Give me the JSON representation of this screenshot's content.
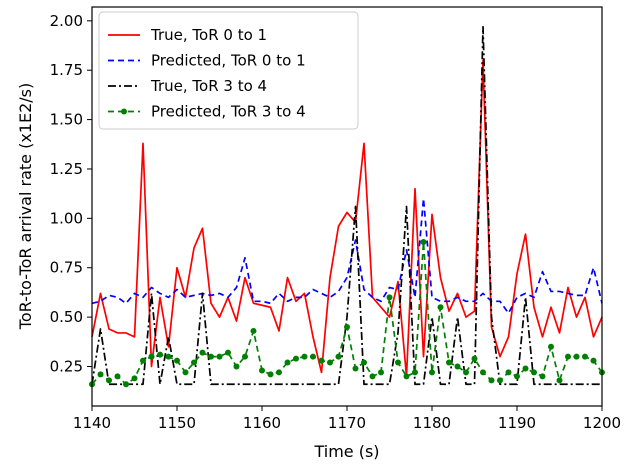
{
  "chart_data": {
    "type": "line",
    "xlabel": "Time (s)",
    "ylabel": "ToR-to-ToR arrival rate (x1E2/s)",
    "xlim": [
      1140,
      1200
    ],
    "ylim": [
      0.05,
      2.07
    ],
    "x_ticks": [
      "1140",
      "1150",
      "1160",
      "1170",
      "1180",
      "1190",
      "1200"
    ],
    "y_ticks": [
      "0.25",
      "0.50",
      "0.75",
      "1.00",
      "1.25",
      "1.50",
      "1.75",
      "2.00"
    ],
    "grid": false,
    "legend_position": "top-left",
    "x": [
      1140,
      1141,
      1142,
      1143,
      1144,
      1145,
      1146,
      1147,
      1148,
      1149,
      1150,
      1151,
      1152,
      1153,
      1154,
      1155,
      1156,
      1157,
      1158,
      1159,
      1160,
      1161,
      1162,
      1163,
      1164,
      1165,
      1166,
      1167,
      1168,
      1169,
      1170,
      1171,
      1172,
      1173,
      1174,
      1175,
      1176,
      1177,
      1178,
      1179,
      1180,
      1181,
      1182,
      1183,
      1184,
      1185,
      1186,
      1187,
      1188,
      1189,
      1190,
      1191,
      1192,
      1193,
      1194,
      1195,
      1196,
      1197,
      1198,
      1199,
      1200
    ],
    "series": [
      {
        "name": "True, ToR 0 to 1",
        "color": "#ff0000",
        "style": "solid",
        "marker": "none",
        "values": [
          0.4,
          0.62,
          0.44,
          0.42,
          0.42,
          0.4,
          1.38,
          0.25,
          0.6,
          0.35,
          0.75,
          0.6,
          0.85,
          0.95,
          0.57,
          0.5,
          0.6,
          0.48,
          0.7,
          0.57,
          0.56,
          0.55,
          0.43,
          0.7,
          0.58,
          0.62,
          0.4,
          0.22,
          0.7,
          0.96,
          1.03,
          0.98,
          1.38,
          0.6,
          0.55,
          0.5,
          0.68,
          0.2,
          1.15,
          0.3,
          1.02,
          0.7,
          0.53,
          0.62,
          0.5,
          0.53,
          1.8,
          0.45,
          0.3,
          0.4,
          0.72,
          0.92,
          0.55,
          0.4,
          0.55,
          0.42,
          0.65,
          0.5,
          0.6,
          0.4,
          0.5
        ]
      },
      {
        "name": "Predicted, ToR 0 to 1",
        "color": "#0000ff",
        "style": "dashed",
        "marker": "none",
        "values": [
          0.57,
          0.58,
          0.61,
          0.6,
          0.57,
          0.62,
          0.6,
          0.65,
          0.62,
          0.6,
          0.64,
          0.6,
          0.61,
          0.62,
          0.61,
          0.62,
          0.6,
          0.65,
          0.8,
          0.58,
          0.58,
          0.57,
          0.62,
          0.58,
          0.6,
          0.6,
          0.64,
          0.62,
          0.6,
          0.63,
          0.7,
          0.89,
          0.64,
          0.6,
          0.58,
          0.65,
          0.64,
          0.84,
          0.6,
          1.1,
          0.6,
          0.58,
          0.58,
          0.6,
          0.58,
          0.58,
          0.62,
          0.58,
          0.58,
          0.52,
          0.6,
          0.62,
          0.6,
          0.73,
          0.63,
          0.63,
          0.62,
          0.61,
          0.61,
          0.75,
          0.57
        ]
      },
      {
        "name": "True, ToR 3 to 4",
        "color": "#000000",
        "style": "dashdot",
        "marker": "none",
        "values": [
          0.16,
          0.44,
          0.16,
          0.16,
          0.16,
          0.16,
          0.16,
          0.62,
          0.16,
          0.4,
          0.16,
          0.16,
          0.16,
          0.62,
          0.16,
          0.16,
          0.16,
          0.16,
          0.16,
          0.16,
          0.16,
          0.16,
          0.16,
          0.16,
          0.16,
          0.16,
          0.16,
          0.16,
          0.16,
          0.16,
          0.5,
          1.06,
          0.16,
          0.16,
          0.16,
          0.16,
          0.42,
          1.06,
          0.16,
          0.16,
          0.5,
          0.16,
          0.16,
          0.5,
          0.16,
          0.16,
          1.97,
          0.5,
          0.16,
          0.16,
          0.16,
          0.6,
          0.16,
          0.16,
          0.16,
          0.16,
          0.16,
          0.16,
          0.16,
          0.16,
          0.16
        ]
      },
      {
        "name": "Predicted, ToR 3 to 4",
        "color": "#008000",
        "style": "dashed",
        "marker": "circle",
        "values": [
          0.16,
          0.21,
          0.18,
          0.2,
          0.16,
          0.19,
          0.28,
          0.3,
          0.31,
          0.3,
          0.28,
          0.22,
          0.27,
          0.32,
          0.3,
          0.3,
          0.32,
          0.25,
          0.3,
          0.43,
          0.23,
          0.21,
          0.22,
          0.27,
          0.29,
          0.3,
          0.3,
          0.28,
          0.27,
          0.3,
          0.45,
          0.24,
          0.27,
          0.2,
          0.22,
          0.6,
          0.27,
          0.2,
          0.22,
          0.88,
          0.22,
          0.55,
          0.27,
          0.25,
          0.22,
          0.29,
          0.22,
          0.18,
          0.18,
          0.22,
          0.2,
          0.24,
          0.22,
          0.2,
          0.35,
          0.18,
          0.3,
          0.3,
          0.3,
          0.28,
          0.22
        ]
      }
    ]
  }
}
